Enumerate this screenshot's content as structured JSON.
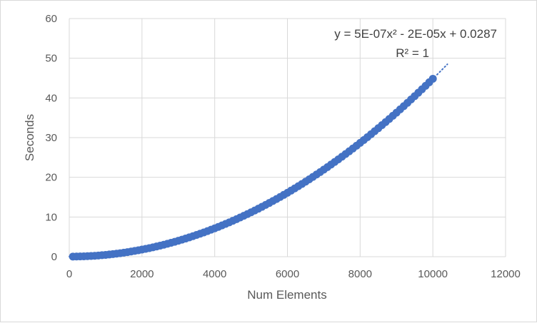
{
  "chart_data": {
    "type": "scatter",
    "title": "",
    "xlabel": "Num Elements",
    "ylabel": "Seconds",
    "xlim": [
      0,
      12000
    ],
    "ylim": [
      0,
      60
    ],
    "xticks": [
      "0",
      "2000",
      "4000",
      "6000",
      "8000",
      "10000",
      "12000"
    ],
    "yticks": [
      "0",
      "10",
      "20",
      "30",
      "40",
      "50",
      "60"
    ],
    "grid": true,
    "legend": "none",
    "marker_color": "#4472C4",
    "series": [
      {
        "points": {
          "x_start": 100,
          "x_end": 10000,
          "x_step": 100,
          "approx_y_at": [
            {
              "x": 0,
              "y": 0.03
            },
            {
              "x": 2000,
              "y": 2
            },
            {
              "x": 4000,
              "y": 7.9
            },
            {
              "x": 6000,
              "y": 17.9
            },
            {
              "x": 8000,
              "y": 31.9
            },
            {
              "x": 10000,
              "y": 44.8
            }
          ]
        }
      }
    ],
    "trendline": {
      "type": "polynomial",
      "order": 2,
      "style": "dotted",
      "x_end": 10400,
      "equation_label": "y = 5E-07x² - 2E-05x + 0.0287",
      "r2_label": "R² = 1",
      "coefficients": {
        "a": 4.5e-07,
        "b": -2e-05,
        "c": 0.0287
      }
    }
  }
}
